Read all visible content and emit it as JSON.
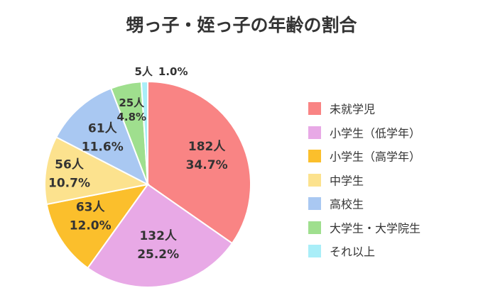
{
  "chart_data": {
    "type": "pie",
    "title": "甥っ子・姪っ子の年齢の割合",
    "slices": [
      {
        "label": "未就学児",
        "count": "182人",
        "percent": "34.7%",
        "value": 34.7,
        "color": "#f98484"
      },
      {
        "label": "小学生（低学年）",
        "count": "132人",
        "percent": "25.2%",
        "value": 25.2,
        "color": "#e8a9e6"
      },
      {
        "label": "小学生（高学年）",
        "count": "63人",
        "percent": "12.0%",
        "value": 12.0,
        "color": "#fbbf2c"
      },
      {
        "label": "中学生",
        "count": "56人",
        "percent": "10.7%",
        "value": 10.7,
        "color": "#fce28e"
      },
      {
        "label": "高校生",
        "count": "61人",
        "percent": "11.6%",
        "value": 11.6,
        "color": "#a9c8f2"
      },
      {
        "label": "大学生・大学院生",
        "count": "25人",
        "percent": "4.8%",
        "value": 4.8,
        "color": "#9fdf8e"
      },
      {
        "label": "それ以上",
        "count": "5人",
        "percent": "1.0%",
        "value": 1.0,
        "color": "#a9eef8"
      }
    ],
    "legend_position": "right"
  }
}
